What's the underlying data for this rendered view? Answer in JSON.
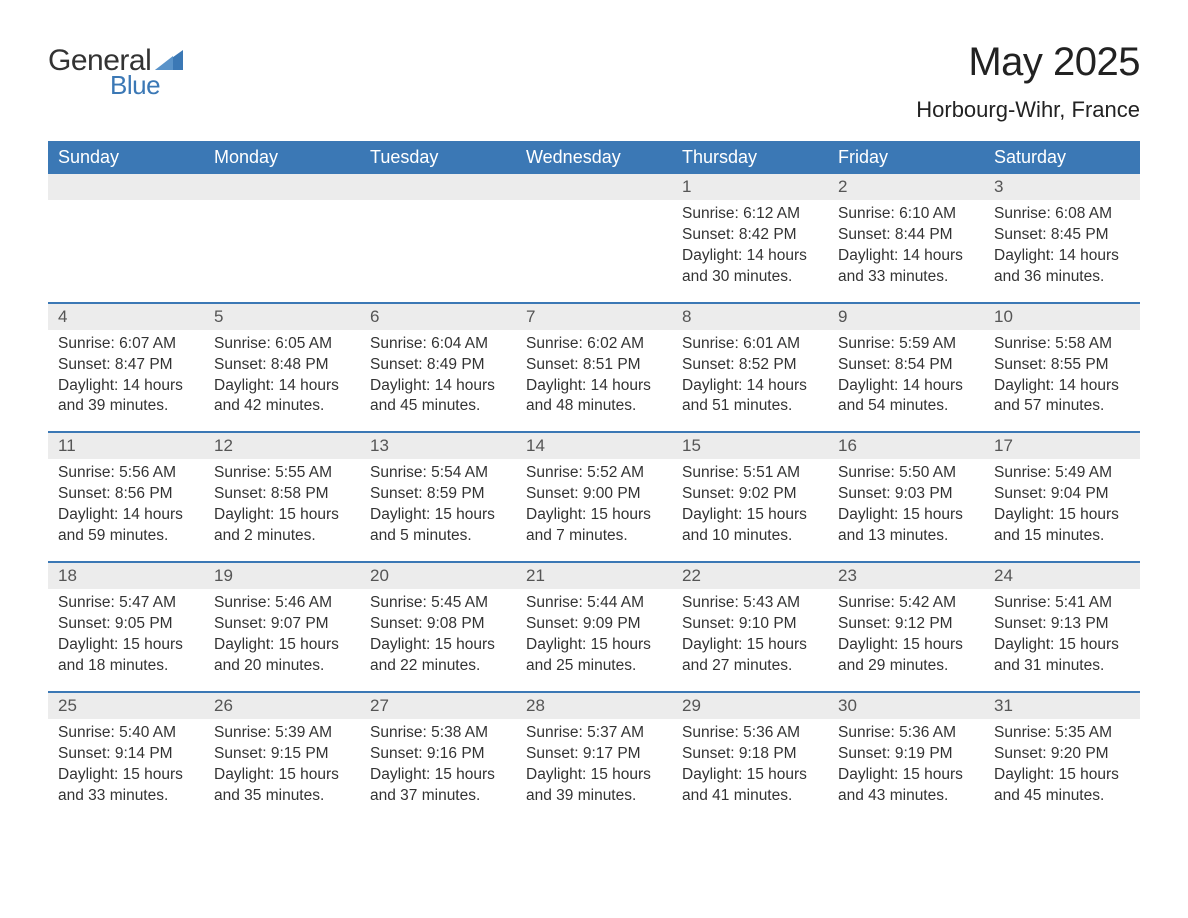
{
  "brand": {
    "general": "General",
    "blue": "Blue"
  },
  "title": {
    "month": "May 2025",
    "location": "Horbourg-Wihr, France"
  },
  "colors": {
    "header_bg": "#3b78b5",
    "band_bg": "#ececec",
    "text": "#333333",
    "white": "#ffffff"
  },
  "calendar": {
    "day_names": [
      "Sunday",
      "Monday",
      "Tuesday",
      "Wednesday",
      "Thursday",
      "Friday",
      "Saturday"
    ],
    "weeks": [
      [
        {
          "day": "",
          "sunrise": "",
          "sunset": "",
          "daylight": ""
        },
        {
          "day": "",
          "sunrise": "",
          "sunset": "",
          "daylight": ""
        },
        {
          "day": "",
          "sunrise": "",
          "sunset": "",
          "daylight": ""
        },
        {
          "day": "",
          "sunrise": "",
          "sunset": "",
          "daylight": ""
        },
        {
          "day": "1",
          "sunrise": "Sunrise: 6:12 AM",
          "sunset": "Sunset: 8:42 PM",
          "daylight": "Daylight: 14 hours and 30 minutes."
        },
        {
          "day": "2",
          "sunrise": "Sunrise: 6:10 AM",
          "sunset": "Sunset: 8:44 PM",
          "daylight": "Daylight: 14 hours and 33 minutes."
        },
        {
          "day": "3",
          "sunrise": "Sunrise: 6:08 AM",
          "sunset": "Sunset: 8:45 PM",
          "daylight": "Daylight: 14 hours and 36 minutes."
        }
      ],
      [
        {
          "day": "4",
          "sunrise": "Sunrise: 6:07 AM",
          "sunset": "Sunset: 8:47 PM",
          "daylight": "Daylight: 14 hours and 39 minutes."
        },
        {
          "day": "5",
          "sunrise": "Sunrise: 6:05 AM",
          "sunset": "Sunset: 8:48 PM",
          "daylight": "Daylight: 14 hours and 42 minutes."
        },
        {
          "day": "6",
          "sunrise": "Sunrise: 6:04 AM",
          "sunset": "Sunset: 8:49 PM",
          "daylight": "Daylight: 14 hours and 45 minutes."
        },
        {
          "day": "7",
          "sunrise": "Sunrise: 6:02 AM",
          "sunset": "Sunset: 8:51 PM",
          "daylight": "Daylight: 14 hours and 48 minutes."
        },
        {
          "day": "8",
          "sunrise": "Sunrise: 6:01 AM",
          "sunset": "Sunset: 8:52 PM",
          "daylight": "Daylight: 14 hours and 51 minutes."
        },
        {
          "day": "9",
          "sunrise": "Sunrise: 5:59 AM",
          "sunset": "Sunset: 8:54 PM",
          "daylight": "Daylight: 14 hours and 54 minutes."
        },
        {
          "day": "10",
          "sunrise": "Sunrise: 5:58 AM",
          "sunset": "Sunset: 8:55 PM",
          "daylight": "Daylight: 14 hours and 57 minutes."
        }
      ],
      [
        {
          "day": "11",
          "sunrise": "Sunrise: 5:56 AM",
          "sunset": "Sunset: 8:56 PM",
          "daylight": "Daylight: 14 hours and 59 minutes."
        },
        {
          "day": "12",
          "sunrise": "Sunrise: 5:55 AM",
          "sunset": "Sunset: 8:58 PM",
          "daylight": "Daylight: 15 hours and 2 minutes."
        },
        {
          "day": "13",
          "sunrise": "Sunrise: 5:54 AM",
          "sunset": "Sunset: 8:59 PM",
          "daylight": "Daylight: 15 hours and 5 minutes."
        },
        {
          "day": "14",
          "sunrise": "Sunrise: 5:52 AM",
          "sunset": "Sunset: 9:00 PM",
          "daylight": "Daylight: 15 hours and 7 minutes."
        },
        {
          "day": "15",
          "sunrise": "Sunrise: 5:51 AM",
          "sunset": "Sunset: 9:02 PM",
          "daylight": "Daylight: 15 hours and 10 minutes."
        },
        {
          "day": "16",
          "sunrise": "Sunrise: 5:50 AM",
          "sunset": "Sunset: 9:03 PM",
          "daylight": "Daylight: 15 hours and 13 minutes."
        },
        {
          "day": "17",
          "sunrise": "Sunrise: 5:49 AM",
          "sunset": "Sunset: 9:04 PM",
          "daylight": "Daylight: 15 hours and 15 minutes."
        }
      ],
      [
        {
          "day": "18",
          "sunrise": "Sunrise: 5:47 AM",
          "sunset": "Sunset: 9:05 PM",
          "daylight": "Daylight: 15 hours and 18 minutes."
        },
        {
          "day": "19",
          "sunrise": "Sunrise: 5:46 AM",
          "sunset": "Sunset: 9:07 PM",
          "daylight": "Daylight: 15 hours and 20 minutes."
        },
        {
          "day": "20",
          "sunrise": "Sunrise: 5:45 AM",
          "sunset": "Sunset: 9:08 PM",
          "daylight": "Daylight: 15 hours and 22 minutes."
        },
        {
          "day": "21",
          "sunrise": "Sunrise: 5:44 AM",
          "sunset": "Sunset: 9:09 PM",
          "daylight": "Daylight: 15 hours and 25 minutes."
        },
        {
          "day": "22",
          "sunrise": "Sunrise: 5:43 AM",
          "sunset": "Sunset: 9:10 PM",
          "daylight": "Daylight: 15 hours and 27 minutes."
        },
        {
          "day": "23",
          "sunrise": "Sunrise: 5:42 AM",
          "sunset": "Sunset: 9:12 PM",
          "daylight": "Daylight: 15 hours and 29 minutes."
        },
        {
          "day": "24",
          "sunrise": "Sunrise: 5:41 AM",
          "sunset": "Sunset: 9:13 PM",
          "daylight": "Daylight: 15 hours and 31 minutes."
        }
      ],
      [
        {
          "day": "25",
          "sunrise": "Sunrise: 5:40 AM",
          "sunset": "Sunset: 9:14 PM",
          "daylight": "Daylight: 15 hours and 33 minutes."
        },
        {
          "day": "26",
          "sunrise": "Sunrise: 5:39 AM",
          "sunset": "Sunset: 9:15 PM",
          "daylight": "Daylight: 15 hours and 35 minutes."
        },
        {
          "day": "27",
          "sunrise": "Sunrise: 5:38 AM",
          "sunset": "Sunset: 9:16 PM",
          "daylight": "Daylight: 15 hours and 37 minutes."
        },
        {
          "day": "28",
          "sunrise": "Sunrise: 5:37 AM",
          "sunset": "Sunset: 9:17 PM",
          "daylight": "Daylight: 15 hours and 39 minutes."
        },
        {
          "day": "29",
          "sunrise": "Sunrise: 5:36 AM",
          "sunset": "Sunset: 9:18 PM",
          "daylight": "Daylight: 15 hours and 41 minutes."
        },
        {
          "day": "30",
          "sunrise": "Sunrise: 5:36 AM",
          "sunset": "Sunset: 9:19 PM",
          "daylight": "Daylight: 15 hours and 43 minutes."
        },
        {
          "day": "31",
          "sunrise": "Sunrise: 5:35 AM",
          "sunset": "Sunset: 9:20 PM",
          "daylight": "Daylight: 15 hours and 45 minutes."
        }
      ]
    ]
  }
}
